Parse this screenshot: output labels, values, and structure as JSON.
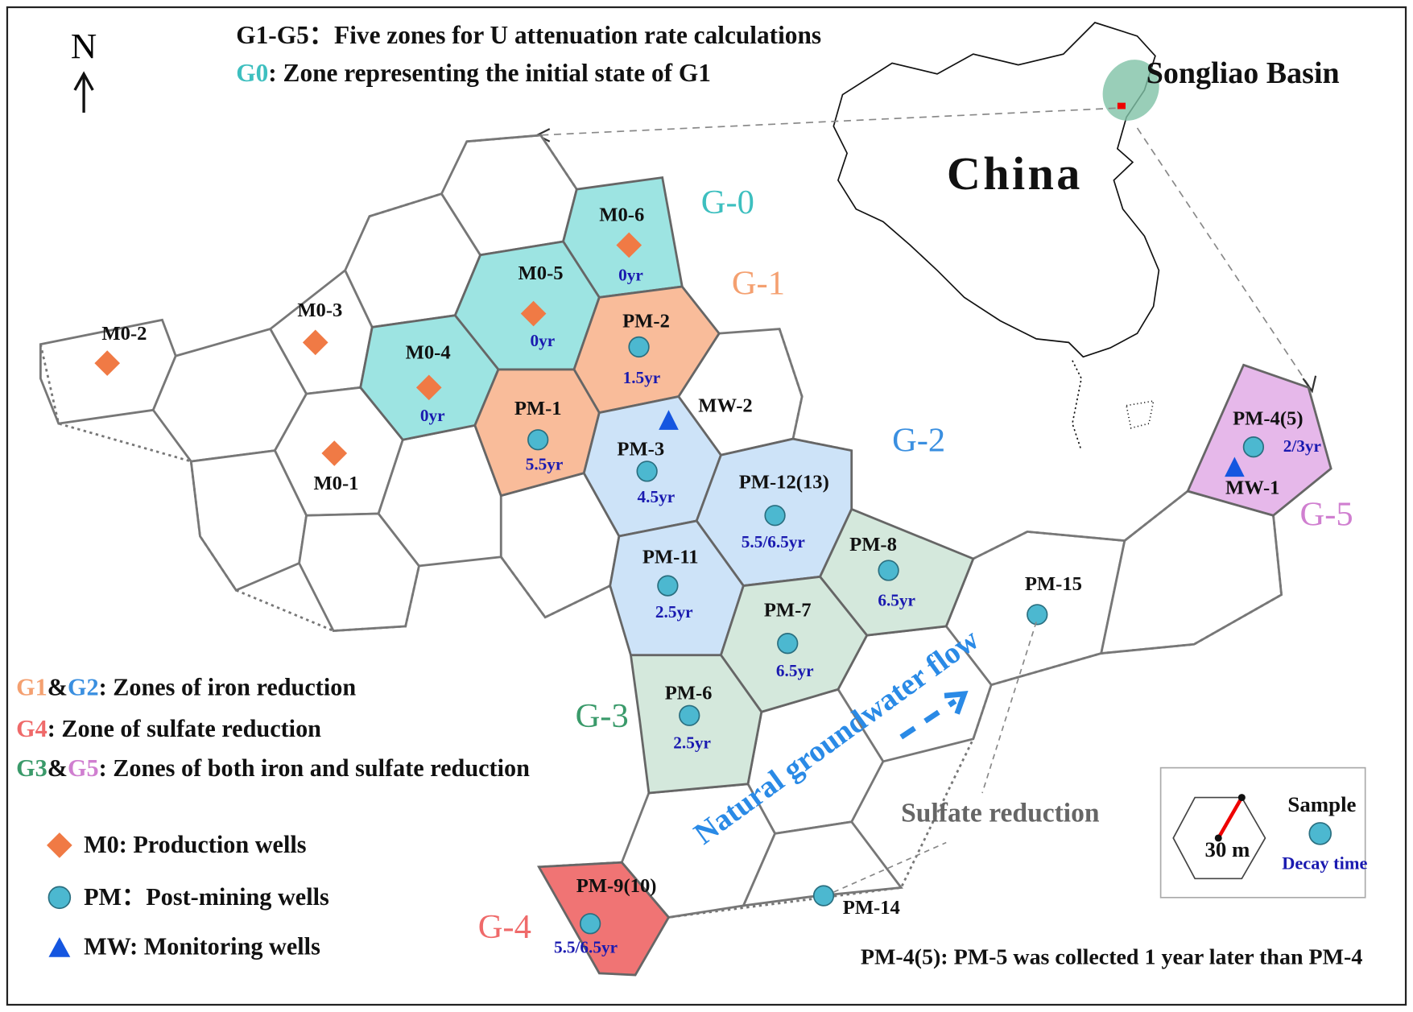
{
  "north": "N",
  "header": {
    "line1": "G1-G5：Five zones for U attenuation rate calculations",
    "line2_key": "G0",
    "line2_text": ": Zone representing the initial state of G1"
  },
  "inset": {
    "region": "Songliao Basin",
    "country": "China"
  },
  "zones": [
    "G-0",
    "G-1",
    "G-2",
    "G-3",
    "G-4",
    "G-5"
  ],
  "wells": [
    {
      "label": "M0-2"
    },
    {
      "label": "M0-3"
    },
    {
      "label": "M0-1"
    },
    {
      "label": "M0-4",
      "time": "0yr"
    },
    {
      "label": "M0-5",
      "time": "0yr"
    },
    {
      "label": "M0-6",
      "time": "0yr"
    },
    {
      "label": "PM-2",
      "time": "1.5yr"
    },
    {
      "label": "PM-1",
      "time": "5.5yr"
    },
    {
      "label": "MW-2"
    },
    {
      "label": "PM-3",
      "time": "4.5yr"
    },
    {
      "label": "PM-12(13)",
      "time": "5.5/6.5yr"
    },
    {
      "label": "PM-11",
      "time": "2.5yr"
    },
    {
      "label": "PM-8",
      "time": "6.5yr"
    },
    {
      "label": "PM-7",
      "time": "6.5yr"
    },
    {
      "label": "PM-6",
      "time": "2.5yr"
    },
    {
      "label": "PM-15"
    },
    {
      "label": "PM-14"
    },
    {
      "label": "PM-9(10)",
      "time": "5.5/6.5yr"
    },
    {
      "label": "PM-4(5)",
      "time": "2/3yr"
    },
    {
      "label": "MW-1"
    }
  ],
  "flow_label": "Natural groundwater flow",
  "sulfate_label": "Sulfate reduction",
  "legend": {
    "zones": [
      {
        "parts": [
          "G1",
          "&",
          "G2",
          ": Zones of iron reduction"
        ]
      },
      {
        "parts": [
          "G4",
          ": Zone of sulfate reduction"
        ]
      },
      {
        "parts": [
          "G3",
          "&",
          "G5",
          ": Zones of both iron and sulfate reduction"
        ]
      }
    ],
    "markers": [
      "M0: Production wells",
      "PM：Post-mining wells",
      "MW: Monitoring wells"
    ]
  },
  "scale": {
    "distance": "30 m",
    "sample": "Sample",
    "decay": "Decay time"
  },
  "note": "PM-4(5): PM-5 was collected 1 year later than PM-4"
}
